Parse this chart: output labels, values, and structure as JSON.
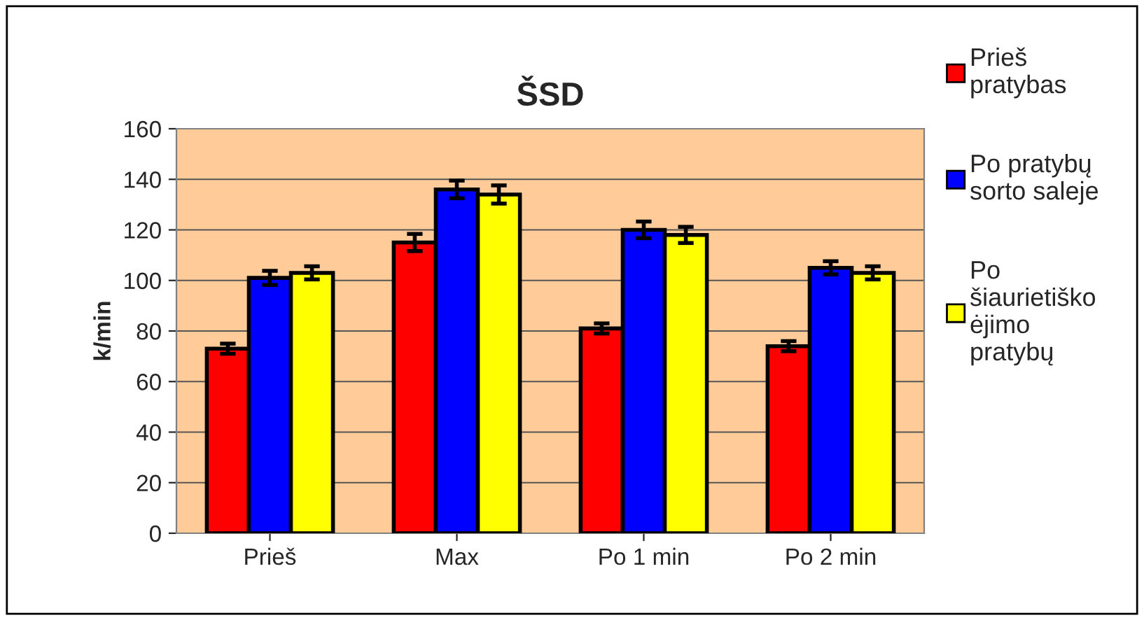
{
  "chart_data": {
    "type": "bar",
    "title": "ŠSD",
    "ylabel": "k/min",
    "categories": [
      "Prieš",
      "Max",
      "Po 1 min",
      "Po 2 min"
    ],
    "series": [
      {
        "name": "Prieš\npratybas",
        "color": "#ff0000",
        "values": [
          73,
          115,
          81,
          74
        ],
        "errors": [
          2,
          3.4,
          2,
          2
        ]
      },
      {
        "name": "Po pratybų\nsorto saleje",
        "color": "#0000ff",
        "values": [
          101,
          136,
          120,
          105
        ],
        "errors": [
          2.8,
          3.5,
          3.3,
          2.6
        ]
      },
      {
        "name": "Po\nšiaurietiško\nėjimo\npratybų",
        "color": "#ffff00",
        "values": [
          103,
          134,
          118,
          103
        ],
        "errors": [
          2.6,
          3.6,
          3.2,
          2.6
        ]
      }
    ],
    "ylim": [
      0,
      160
    ],
    "yticks": [
      0,
      20,
      40,
      60,
      80,
      100,
      120,
      140,
      160
    ],
    "grid": "y",
    "legend": "right"
  }
}
